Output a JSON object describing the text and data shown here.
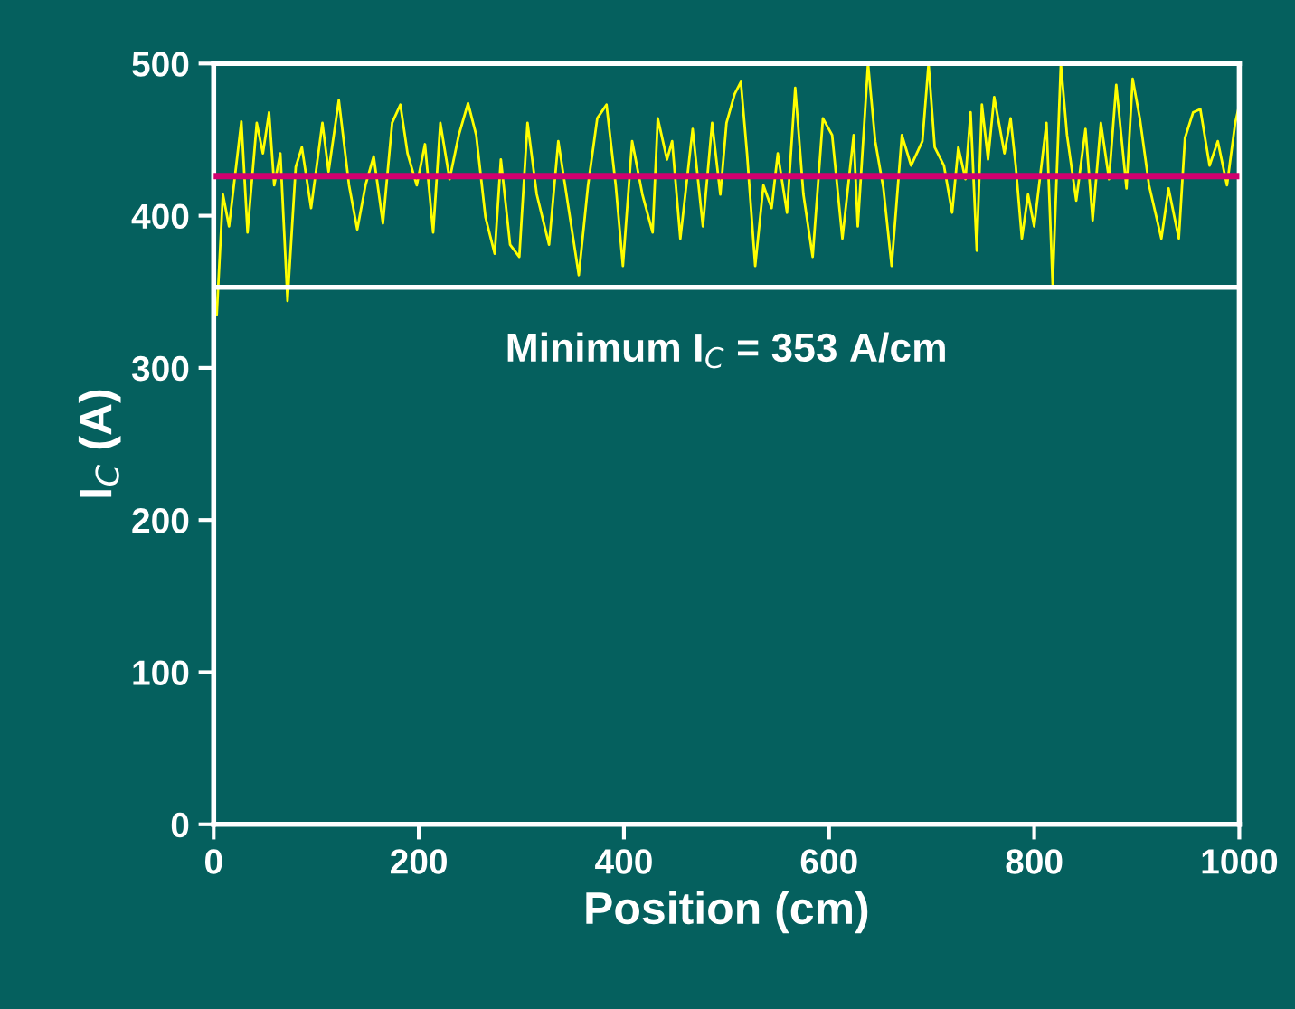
{
  "chart_data": {
    "type": "line",
    "xlabel": "Position (cm)",
    "ylabel": "I$_{C}$ (A)",
    "xlim": [
      0,
      1000
    ],
    "xticks": [
      0,
      200,
      400,
      600,
      800,
      1000
    ],
    "ylim": [
      0,
      500
    ],
    "yticks": [
      0,
      100,
      200,
      300,
      400,
      500
    ],
    "grid": false,
    "marker": "none",
    "line_style": "solid",
    "ref_lines": [
      {
        "axis": "y",
        "value": 426,
        "color": "#d0006f"
      },
      {
        "axis": "y",
        "value": 353,
        "label": "Minimum I$_{C}$ = 353 A/cm",
        "color": "#ffffff"
      }
    ],
    "series": [
      {
        "color": "#ffff00",
        "x": [
          3,
          9,
          15,
          27,
          33,
          42,
          48,
          54,
          59,
          65,
          72,
          80,
          86,
          95,
          106,
          112,
          122,
          132,
          140,
          148,
          156,
          165,
          174,
          182,
          189,
          198,
          206,
          214,
          221,
          230,
          239,
          248,
          256,
          265,
          274,
          280,
          289,
          298,
          306,
          315,
          327,
          336,
          356,
          365,
          374,
          383,
          392,
          399,
          408,
          418,
          428,
          433,
          442,
          447,
          455,
          467,
          477,
          486,
          494,
          500,
          508,
          514,
          520,
          528,
          536,
          544,
          550,
          559,
          567,
          575,
          584,
          594,
          603,
          613,
          624,
          628,
          638,
          645,
          653,
          661,
          671,
          680,
          691,
          697,
          703,
          712,
          720,
          726,
          733,
          738,
          744,
          749,
          755,
          761,
          771,
          777,
          782,
          788,
          794,
          800,
          812,
          818,
          826,
          832,
          841,
          850,
          857,
          865,
          873,
          880,
          890,
          896,
          903,
          912,
          924,
          931,
          941,
          947,
          955,
          962,
          971,
          979,
          988,
          996,
          1000
        ],
        "values": [
          335,
          414,
          393,
          462,
          389,
          461,
          441,
          468,
          420,
          441,
          344,
          432,
          445,
          405,
          461,
          429,
          476,
          420,
          391,
          420,
          439,
          395,
          461,
          473,
          441,
          420,
          447,
          389,
          461,
          424,
          453,
          474,
          453,
          399,
          375,
          437,
          381,
          373,
          461,
          414,
          381,
          449,
          361,
          420,
          464,
          473,
          420,
          367,
          449,
          414,
          389,
          464,
          437,
          449,
          385,
          457,
          393,
          461,
          414,
          461,
          480,
          488,
          441,
          367,
          420,
          405,
          441,
          402,
          484,
          414,
          373,
          464,
          453,
          385,
          453,
          393,
          500,
          449,
          418,
          367,
          453,
          433,
          449,
          500,
          445,
          433,
          402,
          445,
          424,
          468,
          377,
          473,
          437,
          478,
          441,
          464,
          433,
          385,
          414,
          393,
          461,
          355,
          500,
          453,
          410,
          457,
          397,
          461,
          424,
          486,
          418,
          490,
          464,
          420,
          385,
          418,
          385,
          451,
          468,
          470,
          433,
          449,
          420,
          461,
          473
        ]
      }
    ]
  }
}
